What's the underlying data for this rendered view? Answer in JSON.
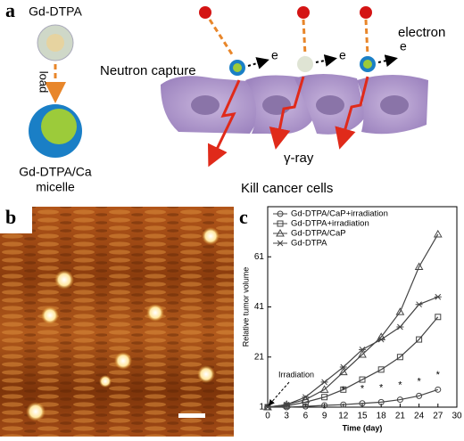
{
  "panel_a": {
    "label": "a",
    "agent": "Gd-DTPA",
    "load": "load",
    "micelle": [
      "Gd-DTPA/Ca",
      "micelle"
    ],
    "neutron_capture": "Neutron capture",
    "electron_symbol": "e",
    "electron": "electron",
    "gamma": "γ-ray",
    "kill": "Kill cancer cells"
  },
  "panel_b": {
    "label": "b"
  },
  "panel_c": {
    "label": "c"
  },
  "chart_data": {
    "type": "line",
    "xlabel": "Time (day)",
    "ylabel": "Relative tumor volume",
    "xlim": [
      0,
      30
    ],
    "xticks": [
      0,
      3,
      6,
      9,
      12,
      15,
      18,
      21,
      24,
      27,
      30
    ],
    "ylim": [
      1,
      81
    ],
    "yticks": [
      1,
      21,
      41,
      61
    ],
    "x": [
      0,
      3,
      6,
      9,
      12,
      15,
      18,
      21,
      24,
      27
    ],
    "series": [
      {
        "name": "Gd-DTPA/CaP+irradiation",
        "marker": "circle",
        "color": "#444444",
        "values": [
          1,
          1,
          1.3,
          1.7,
          2,
          2.5,
          3,
          4,
          5.5,
          8
        ]
      },
      {
        "name": "Gd-DTPA+irradiation",
        "marker": "square",
        "color": "#444444",
        "values": [
          1,
          1.5,
          3,
          5,
          8,
          12,
          16,
          21,
          28,
          37
        ]
      },
      {
        "name": "Gd-DTPA/CaP",
        "marker": "triangle",
        "color": "#444444",
        "values": [
          1,
          2,
          4,
          8,
          15,
          22,
          29,
          39,
          57,
          70
        ]
      },
      {
        "name": "Gd-DTPA",
        "marker": "star",
        "color": "#444444",
        "values": [
          1,
          2,
          5,
          11,
          17,
          24,
          28,
          33,
          42,
          45
        ]
      }
    ],
    "annotation": "Irradiation",
    "significance": "*"
  }
}
